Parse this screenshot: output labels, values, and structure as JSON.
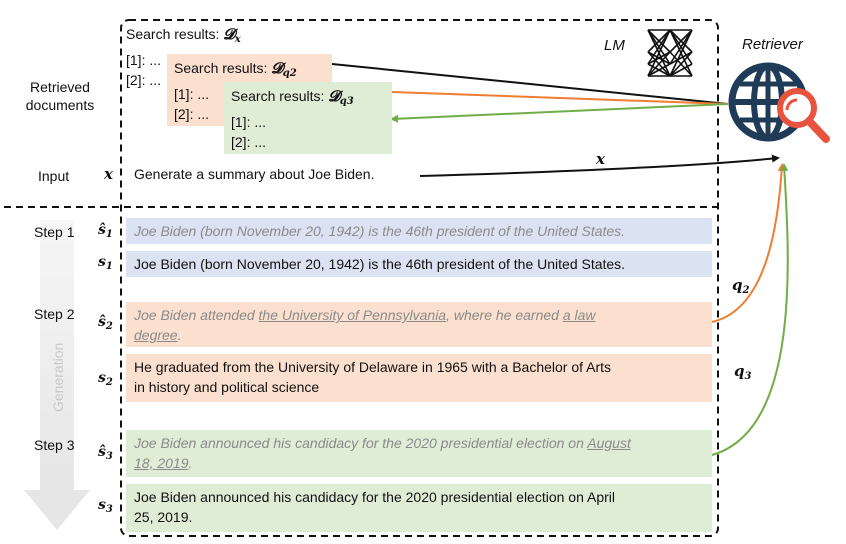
{
  "left_labels": {
    "retrieved_documents": "Retrieved\ndocuments",
    "input": "Input",
    "step1": "Step 1",
    "step2": "Step 2",
    "step3": "Step 3",
    "generation": "Generation"
  },
  "symbols": {
    "x": "x",
    "s_hat": "ŝ",
    "s": "s",
    "sub1": "1",
    "sub2": "2",
    "sub3": "3",
    "D": "𝓓",
    "q": "q"
  },
  "header": {
    "lm": "LM",
    "retriever": "Retriever"
  },
  "search_boxes": {
    "dx": {
      "title": "Search results:",
      "sym_sub": "x",
      "line1": "[1]: ...",
      "line2": "[2]: ..."
    },
    "dq2": {
      "title": "Search results:",
      "sym_sub": "q2",
      "line1": "[1]: ...",
      "line2": "[2]: ..."
    },
    "dq3": {
      "title": "Search results:",
      "sym_sub": "q3",
      "line1": "[1]: ...",
      "line2": "[2]: ..."
    }
  },
  "input_text": "Generate a summary about Joe Biden.",
  "arrow_labels": {
    "x": "x",
    "q2": "q",
    "q2_sub": "2",
    "q3": "q",
    "q3_sub": "3"
  },
  "steps": {
    "s1_hat": "Joe Biden (born November 20, 1942) is the 46th president of the United States.",
    "s1": "Joe Biden (born November 20, 1942) is the 46th president of the United States.",
    "s2_hat_a": "Joe Biden attended ",
    "s2_hat_u1": "the University of Pennsylvania",
    "s2_hat_b": ", where he earned ",
    "s2_hat_u2a": "a law",
    "s2_hat_u2b": "degree",
    "s2_hat_c": ".",
    "s2_line1": "He graduated from the University of Delaware in 1965 with a Bachelor of Arts",
    "s2_line2": "in history and political science",
    "s3_hat_a": "Joe Biden announced his candidacy for the 2020 presidential election on ",
    "s3_hat_u1": "August",
    "s3_hat_u2": "18, 2019",
    "s3_hat_c": ".",
    "s3_line1": "Joe Biden announced his candidacy for the 2020 presidential election on April",
    "s3_line2": "25, 2019."
  },
  "colors": {
    "blue_box": "#dbe3f3",
    "peach_box": "#fbe0cf",
    "green_box": "#dfecd6",
    "orange_arrow": "#ed7d31",
    "green_arrow": "#70ad47",
    "globe": "#1f3b57",
    "magnifier": "#e8533f"
  }
}
